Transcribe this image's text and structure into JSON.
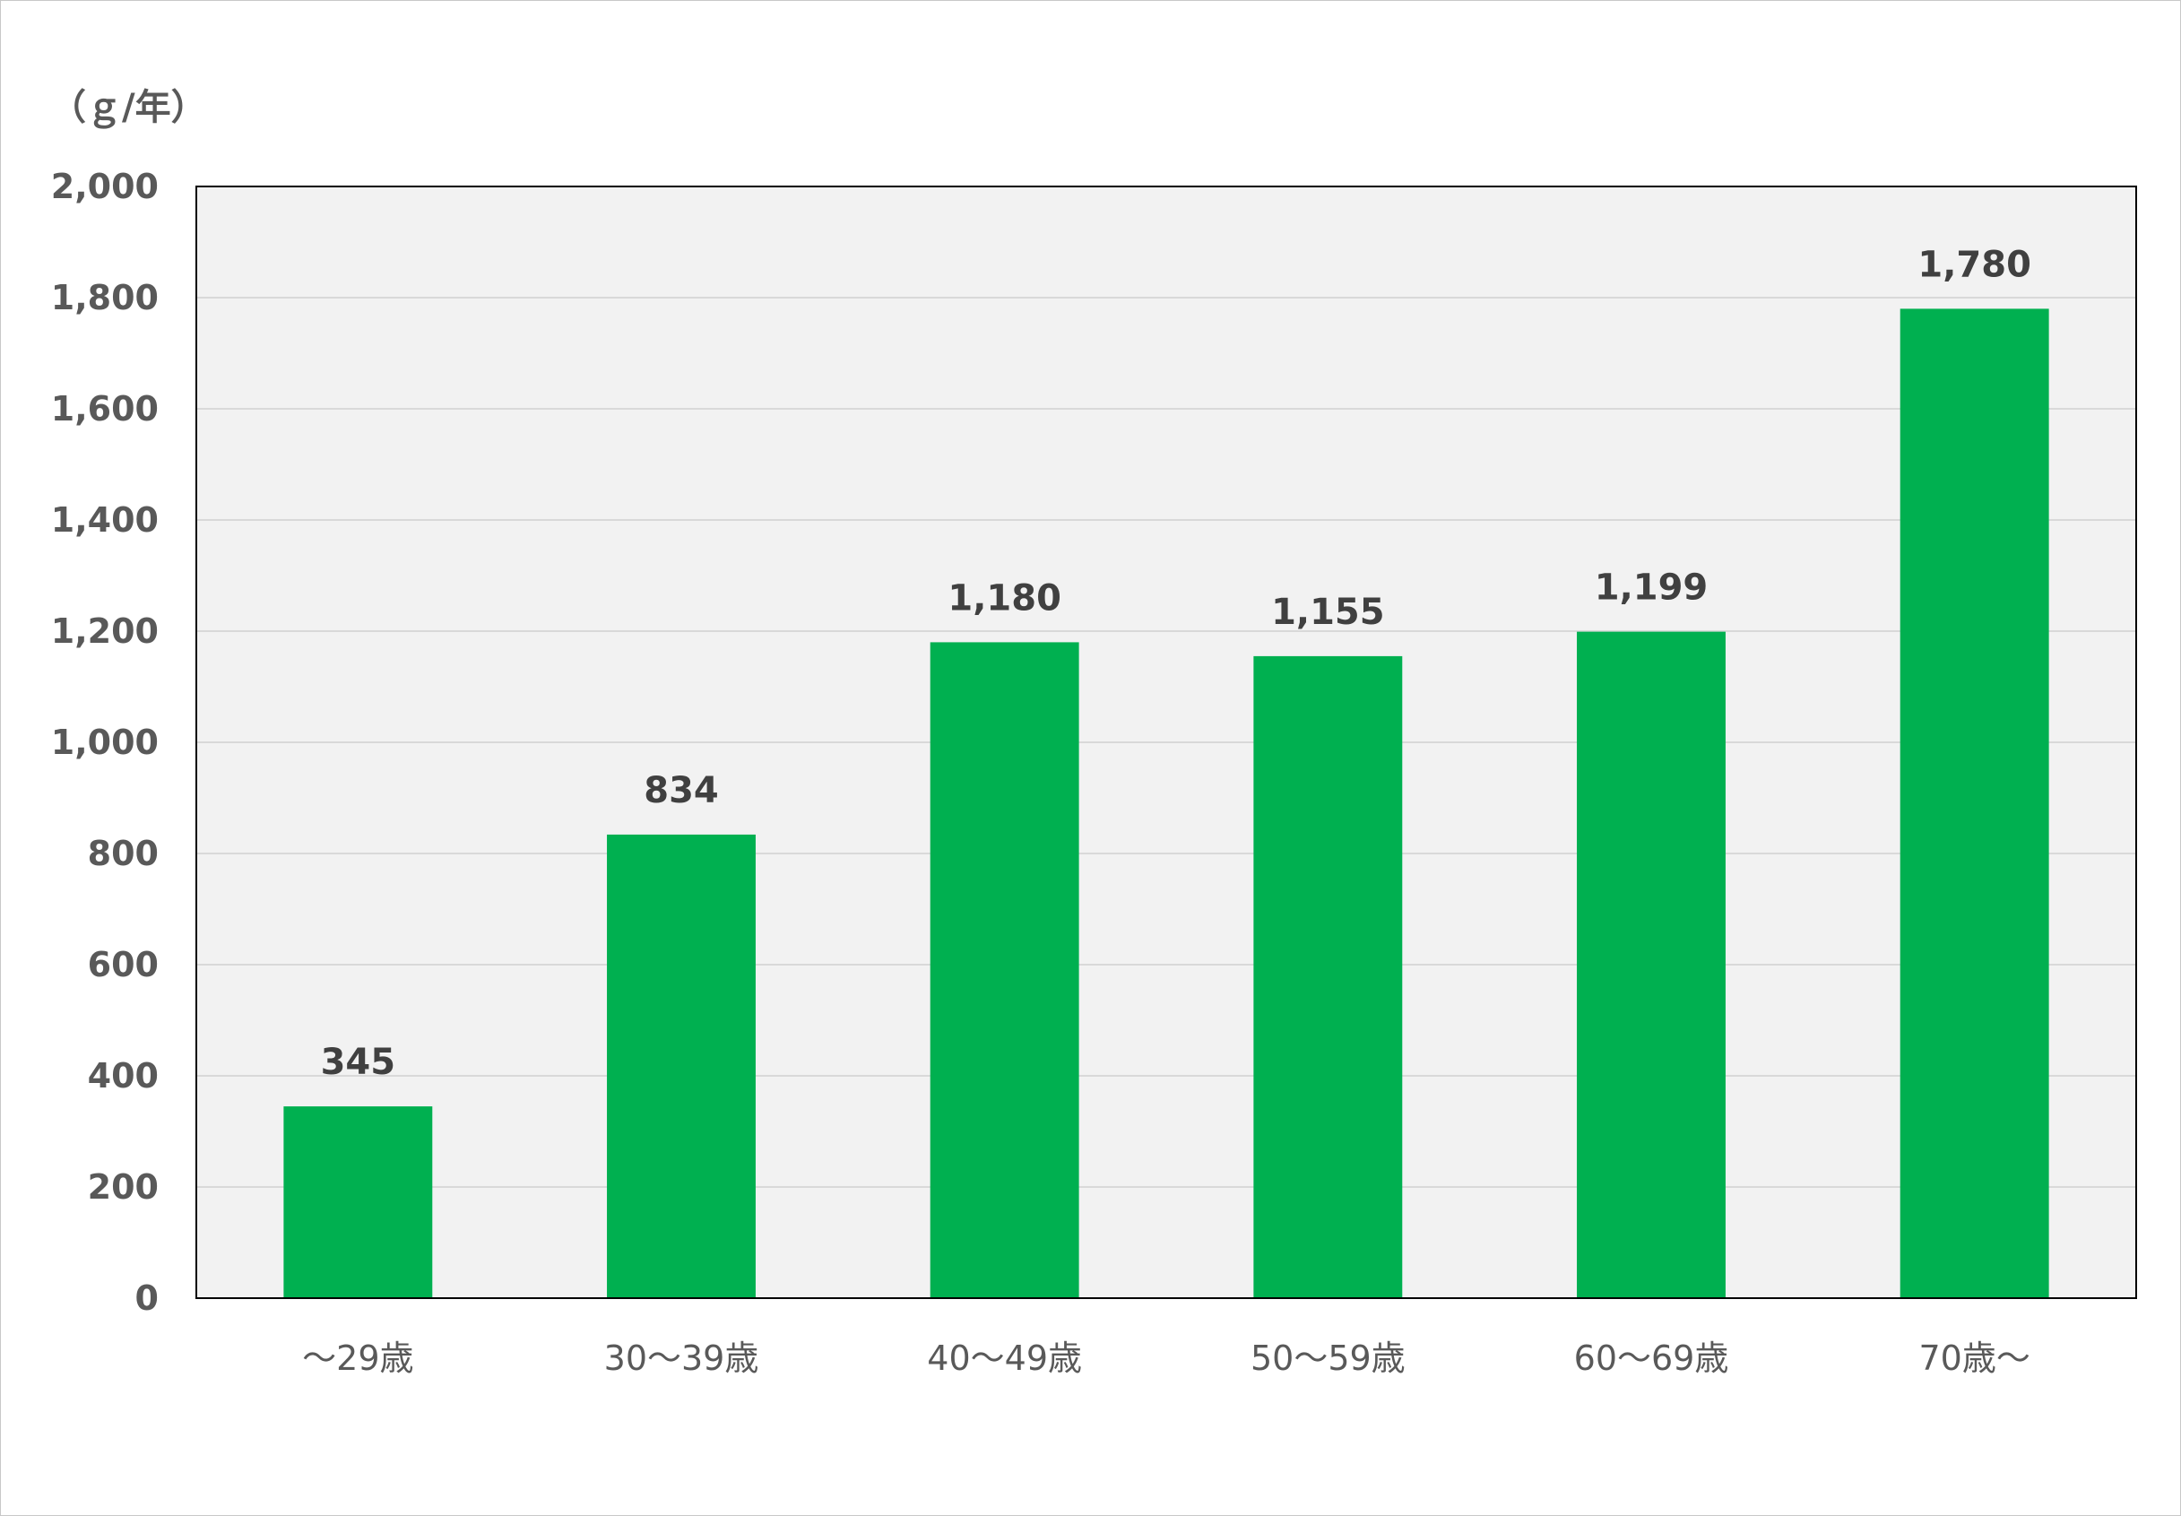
{
  "chart_data": {
    "type": "bar",
    "unit_label": "（ｇ/年）",
    "categories": [
      "～29歳",
      "30～39歳",
      "40～49歳",
      "50～59歳",
      "60～69歳",
      "70歳～"
    ],
    "values": [
      345,
      834,
      1180,
      1155,
      1199,
      1780
    ],
    "data_labels": [
      "345",
      "834",
      "1,180",
      "1,155",
      "1,199",
      "1,780"
    ],
    "ylim": [
      0,
      2000
    ],
    "yticks": [
      "0",
      "200",
      "400",
      "600",
      "800",
      "1,000",
      "1,200",
      "1,400",
      "1,600",
      "1,800",
      "2,000"
    ],
    "ytick_values": [
      0,
      200,
      400,
      600,
      800,
      1000,
      1200,
      1400,
      1600,
      1800,
      2000
    ],
    "grid": true,
    "colors": {
      "bar": "#00b050",
      "plot_background": "#f2f2f2",
      "gridline": "#d9d9d9",
      "axis": "#000000"
    }
  }
}
